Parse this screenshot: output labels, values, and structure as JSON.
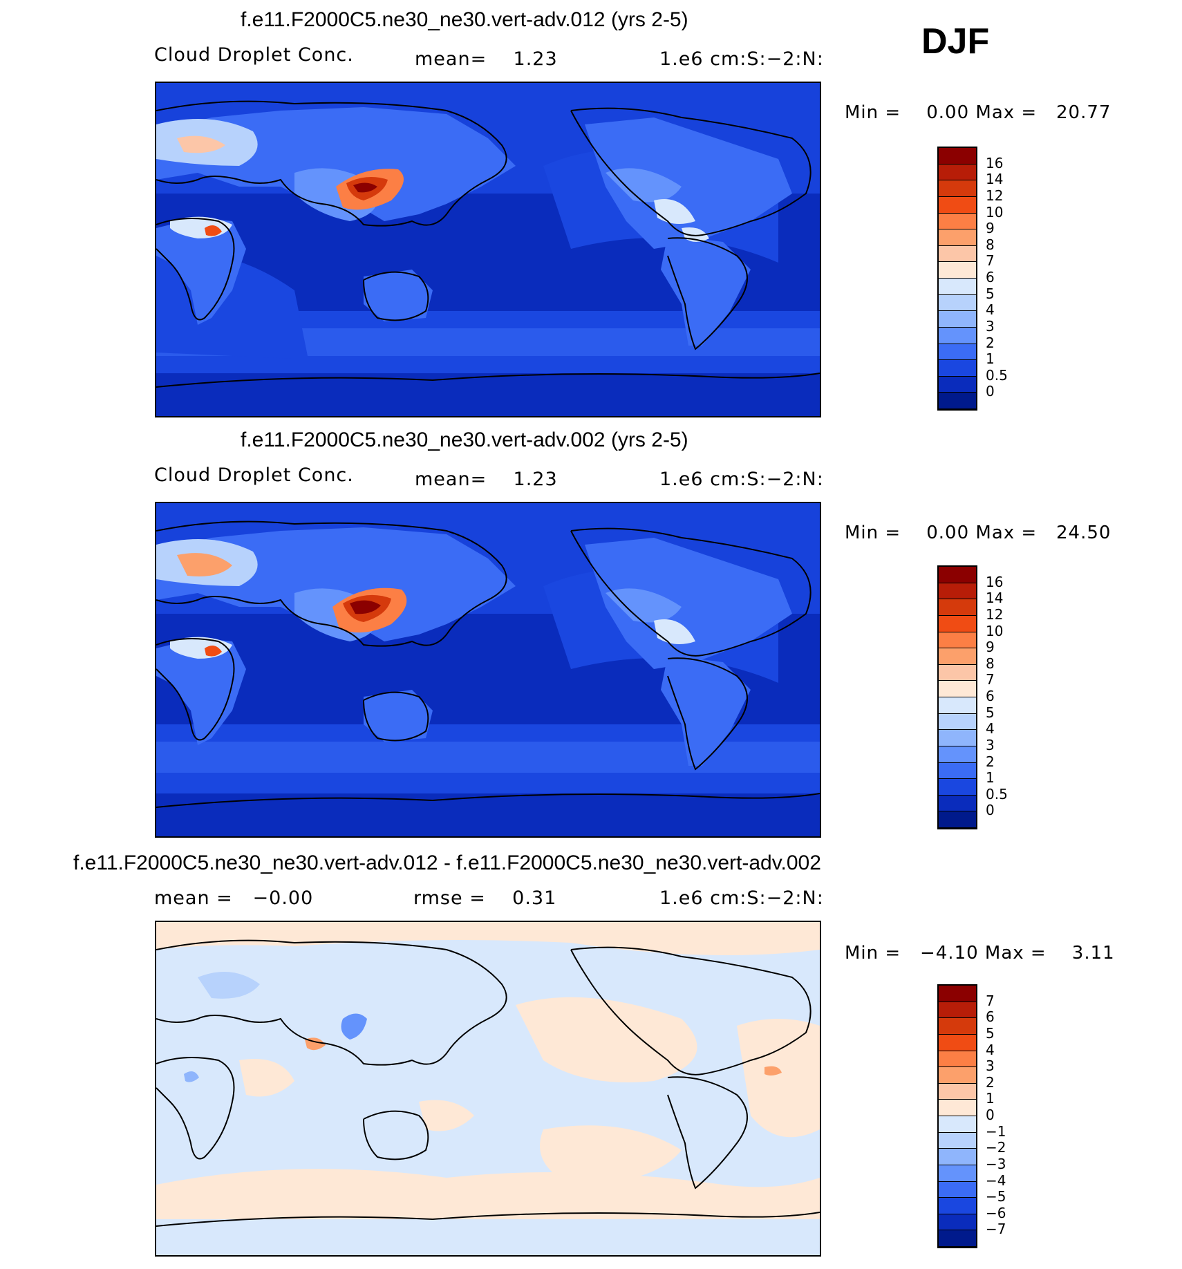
{
  "season": "DJF",
  "panels": [
    {
      "title": "f.e11.F2000C5.ne30_ne30.vert-adv.012 (yrs 2-5)",
      "left_label": "Cloud Droplet Conc.",
      "center_label": "mean=    1.23",
      "right_label": "1.e6 cm:S:−2:N:",
      "minmax": "Min =    0.00 Max =   20.77",
      "colorbar_labels": [
        "16",
        "14",
        "12",
        "10",
        "9",
        "8",
        "7",
        "6",
        "5",
        "4",
        "3",
        "2",
        "1",
        "0.5",
        "0"
      ],
      "colors": [
        "#8b0000",
        "#b71d08",
        "#d53a0c",
        "#f04c14",
        "#fc7f45",
        "#fca06b",
        "#fcc6a8",
        "#fee8d6",
        "#d8e8fc",
        "#b7d2fc",
        "#8fb5fc",
        "#6493fc",
        "#3b6cf5",
        "#1a47e0",
        "#0a2cbc",
        "#001a8c"
      ],
      "max_value": 20.77
    },
    {
      "title": "f.e11.F2000C5.ne30_ne30.vert-adv.002 (yrs 2-5)",
      "left_label": "Cloud Droplet Conc.",
      "center_label": "mean=    1.23",
      "right_label": "1.e6 cm:S:−2:N:",
      "minmax": "Min =    0.00 Max =   24.50",
      "colorbar_labels": [
        "16",
        "14",
        "12",
        "10",
        "9",
        "8",
        "7",
        "6",
        "5",
        "4",
        "3",
        "2",
        "1",
        "0.5",
        "0"
      ],
      "colors": [
        "#8b0000",
        "#b71d08",
        "#d53a0c",
        "#f04c14",
        "#fc7f45",
        "#fca06b",
        "#fcc6a8",
        "#fee8d6",
        "#d8e8fc",
        "#b7d2fc",
        "#8fb5fc",
        "#6493fc",
        "#3b6cf5",
        "#1a47e0",
        "#0a2cbc",
        "#001a8c"
      ],
      "max_value": 24.5
    },
    {
      "title": "f.e11.F2000C5.ne30_ne30.vert-adv.012 - f.e11.F2000C5.ne30_ne30.vert-adv.002",
      "left_label": "mean =   −0.00",
      "center_label": "rmse =    0.31",
      "right_label": "1.e6 cm:S:−2:N:",
      "minmax": "Min =   −4.10 Max =    3.11",
      "colorbar_labels": [
        "7",
        "6",
        "5",
        "4",
        "3",
        "2",
        "1",
        "0",
        "−1",
        "−2",
        "−3",
        "−4",
        "−5",
        "−6",
        "−7"
      ],
      "colors": [
        "#8b0000",
        "#b71d08",
        "#d53a0c",
        "#f04c14",
        "#fc7f45",
        "#fca06b",
        "#fcc6a8",
        "#fee8d6",
        "#d8e8fc",
        "#b7d2fc",
        "#8fb5fc",
        "#6493fc",
        "#3b6cf5",
        "#1a47e0",
        "#0a2cbc",
        "#001a8c"
      ],
      "min_value": -4.1
    }
  ]
}
